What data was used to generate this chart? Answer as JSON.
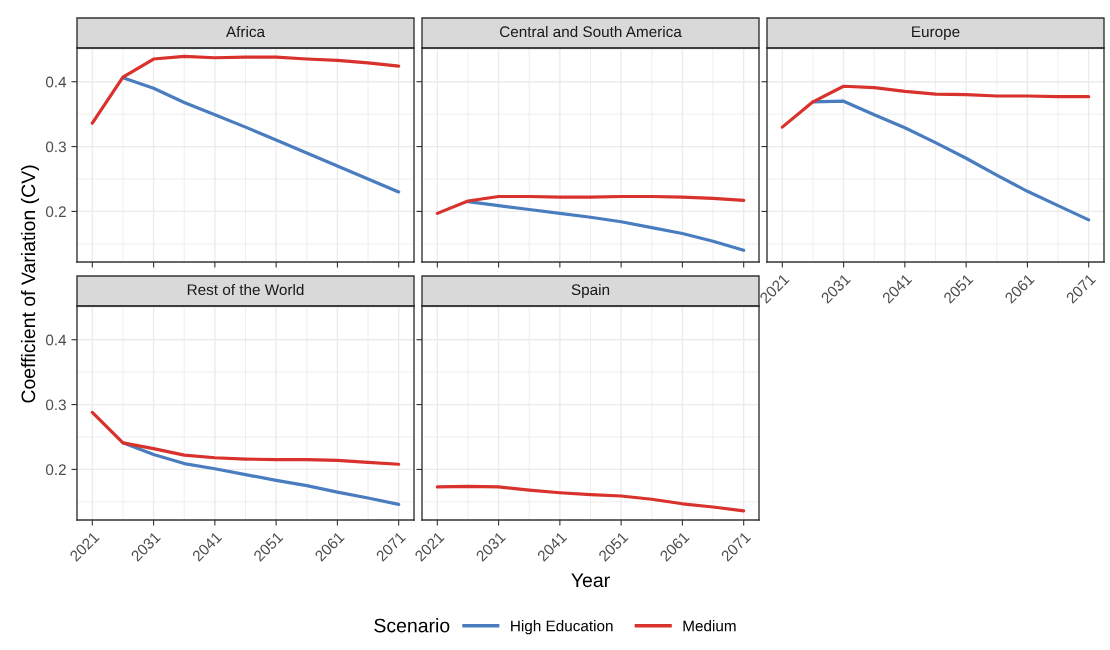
{
  "chart_data": [
    {
      "type": "line",
      "title": "Africa",
      "ylabel": "Coefficient of Variation (CV)",
      "legend_title": "Scenario",
      "legend": "bottom",
      "grid": true,
      "tick_labels": "y",
      "x": [
        2021,
        2026,
        2031,
        2036,
        2041,
        2046,
        2051,
        2056,
        2061,
        2066,
        2071
      ],
      "xlim": [
        2018.5,
        2073.5
      ],
      "ylim": [
        0.122,
        0.452
      ],
      "xticks": [
        2021,
        {
          "value": 2026,
          "label": null
        },
        2031,
        {
          "value": 2036,
          "label": null
        },
        2041,
        {
          "value": 2046,
          "label": null
        },
        2051,
        {
          "value": 2056,
          "label": null
        },
        2061,
        {
          "value": 2066,
          "label": null
        },
        2071
      ],
      "yticks": [
        {
          "value": 0.15,
          "label": null
        },
        0.2,
        {
          "value": 0.25,
          "label": null
        },
        0.3,
        {
          "value": 0.35,
          "label": null
        },
        0.4,
        {
          "value": 0.45,
          "label": null
        }
      ],
      "series": [
        {
          "name": "High Education",
          "color": "#4a7cc0",
          "values": [
            null,
            0.406,
            0.39,
            0.368,
            0.349,
            0.33,
            0.31,
            0.29,
            0.27,
            0.25,
            0.23
          ]
        },
        {
          "name": "Medium",
          "color": "#d9312b",
          "values": [
            0.336,
            0.407,
            0.435,
            0.439,
            0.437,
            0.438,
            0.438,
            0.435,
            0.433,
            0.429,
            0.424
          ]
        }
      ]
    },
    {
      "type": "line",
      "title": "Central and South America",
      "grid": true,
      "tick_labels": false,
      "x": [
        2021,
        2026,
        2031,
        2036,
        2041,
        2046,
        2051,
        2056,
        2061,
        2066,
        2071
      ],
      "xlim": [
        2018.5,
        2073.5
      ],
      "ylim": [
        0.122,
        0.452
      ],
      "xticks": [
        2021,
        {
          "value": 2026,
          "label": null
        },
        2031,
        {
          "value": 2036,
          "label": null
        },
        2041,
        {
          "value": 2046,
          "label": null
        },
        2051,
        {
          "value": 2056,
          "label": null
        },
        2061,
        {
          "value": 2066,
          "label": null
        },
        2071
      ],
      "yticks": [
        {
          "value": 0.15,
          "label": null
        },
        0.2,
        {
          "value": 0.25,
          "label": null
        },
        0.3,
        {
          "value": 0.35,
          "label": null
        },
        0.4,
        {
          "value": 0.45,
          "label": null
        }
      ],
      "series": [
        {
          "name": "High Education",
          "color": "#4a7cc0",
          "values": [
            null,
            0.215,
            0.209,
            0.203,
            0.197,
            0.191,
            0.184,
            0.175,
            0.166,
            0.154,
            0.14
          ]
        },
        {
          "name": "Medium",
          "color": "#d9312b",
          "values": [
            0.197,
            0.216,
            0.223,
            0.223,
            0.222,
            0.222,
            0.223,
            0.223,
            0.222,
            0.22,
            0.217
          ]
        }
      ]
    },
    {
      "type": "line",
      "title": "Europe",
      "grid": true,
      "tick_labels": "x",
      "x": [
        2021,
        2026,
        2031,
        2036,
        2041,
        2046,
        2051,
        2056,
        2061,
        2066,
        2071
      ],
      "xlim": [
        2018.5,
        2073.5
      ],
      "ylim": [
        0.122,
        0.452
      ],
      "xticks": [
        2021,
        {
          "value": 2026,
          "label": null
        },
        2031,
        {
          "value": 2036,
          "label": null
        },
        2041,
        {
          "value": 2046,
          "label": null
        },
        2051,
        {
          "value": 2056,
          "label": null
        },
        2061,
        {
          "value": 2066,
          "label": null
        },
        2071
      ],
      "yticks": [
        {
          "value": 0.15,
          "label": null
        },
        0.2,
        {
          "value": 0.25,
          "label": null
        },
        0.3,
        {
          "value": 0.35,
          "label": null
        },
        0.4,
        {
          "value": 0.45,
          "label": null
        }
      ],
      "series": [
        {
          "name": "High Education",
          "color": "#4a7cc0",
          "values": [
            null,
            0.369,
            0.37,
            0.349,
            0.329,
            0.306,
            0.282,
            0.256,
            0.231,
            0.209,
            0.187
          ]
        },
        {
          "name": "Medium",
          "color": "#d9312b",
          "values": [
            0.33,
            0.369,
            0.393,
            0.391,
            0.385,
            0.381,
            0.38,
            0.378,
            0.378,
            0.377,
            0.377
          ]
        }
      ]
    },
    {
      "type": "line",
      "title": "Rest of the World",
      "grid": true,
      "x": [
        2021,
        2026,
        2031,
        2036,
        2041,
        2046,
        2051,
        2056,
        2061,
        2066,
        2071
      ],
      "xlim": [
        2018.5,
        2073.5
      ],
      "ylim": [
        0.122,
        0.452
      ],
      "xticks": [
        2021,
        {
          "value": 2026,
          "label": null
        },
        2031,
        {
          "value": 2036,
          "label": null
        },
        2041,
        {
          "value": 2046,
          "label": null
        },
        2051,
        {
          "value": 2056,
          "label": null
        },
        2061,
        {
          "value": 2066,
          "label": null
        },
        2071
      ],
      "yticks": [
        {
          "value": 0.15,
          "label": null
        },
        0.2,
        {
          "value": 0.25,
          "label": null
        },
        0.3,
        {
          "value": 0.35,
          "label": null
        },
        0.4,
        {
          "value": 0.45,
          "label": null
        }
      ],
      "series": [
        {
          "name": "High Education",
          "color": "#4a7cc0",
          "values": [
            null,
            0.241,
            0.223,
            0.209,
            0.201,
            0.192,
            0.183,
            0.175,
            0.165,
            0.156,
            0.146
          ]
        },
        {
          "name": "Medium",
          "color": "#d9312b",
          "values": [
            0.288,
            0.241,
            0.232,
            0.222,
            0.218,
            0.216,
            0.215,
            0.215,
            0.214,
            0.211,
            0.208
          ]
        }
      ]
    },
    {
      "type": "line",
      "title": "Spain",
      "xlabel": "Year",
      "grid": true,
      "tick_labels": "x",
      "x": [
        2021,
        2026,
        2031,
        2036,
        2041,
        2046,
        2051,
        2056,
        2061,
        2066,
        2071
      ],
      "xlim": [
        2018.5,
        2073.5
      ],
      "ylim": [
        0.122,
        0.452
      ],
      "xticks": [
        2021,
        {
          "value": 2026,
          "label": null
        },
        2031,
        {
          "value": 2036,
          "label": null
        },
        2041,
        {
          "value": 2046,
          "label": null
        },
        2051,
        {
          "value": 2056,
          "label": null
        },
        2061,
        {
          "value": 2066,
          "label": null
        },
        2071
      ],
      "yticks": [
        {
          "value": 0.15,
          "label": null
        },
        0.2,
        {
          "value": 0.25,
          "label": null
        },
        0.3,
        {
          "value": 0.35,
          "label": null
        },
        0.4,
        {
          "value": 0.45,
          "label": null
        }
      ],
      "series": [
        {
          "name": "Medium",
          "color": "#d9312b",
          "values": [
            0.173,
            0.174,
            0.173,
            0.168,
            0.164,
            0.161,
            0.159,
            0.154,
            0.147,
            0.142,
            0.136
          ]
        }
      ]
    }
  ]
}
